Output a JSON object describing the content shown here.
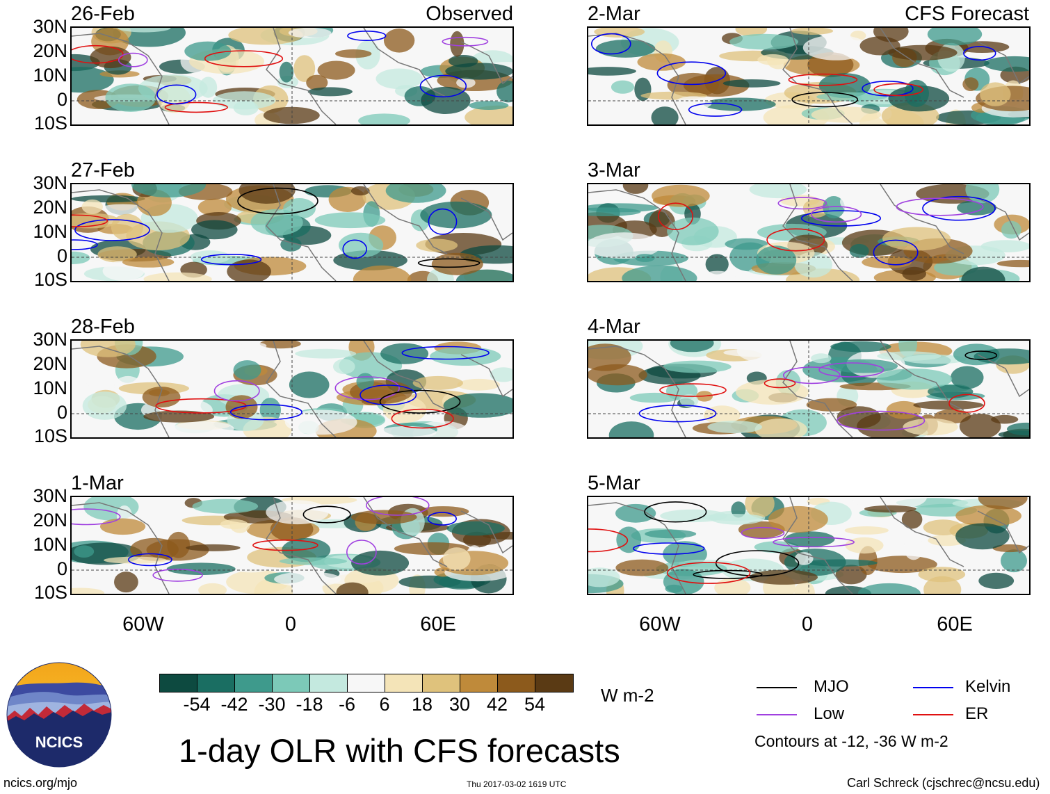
{
  "header": {
    "left_title": "Observed",
    "right_title": "CFS Forecast"
  },
  "panels_left": [
    {
      "date": "26-Feb"
    },
    {
      "date": "27-Feb"
    },
    {
      "date": "28-Feb"
    },
    {
      "date": "1-Mar"
    }
  ],
  "panels_right": [
    {
      "date": "2-Mar"
    },
    {
      "date": "3-Mar"
    },
    {
      "date": "4-Mar"
    },
    {
      "date": "5-Mar"
    }
  ],
  "axes": {
    "lat_labels": [
      "30N",
      "20N",
      "10N",
      "0",
      "10S"
    ],
    "lon_labels": [
      "60W",
      "0",
      "60E"
    ]
  },
  "colorbar": {
    "colors": [
      "#0d4a40",
      "#1a6e62",
      "#3e9a8c",
      "#7cc9b8",
      "#c4e9df",
      "#f7f7f7",
      "#f4e4b8",
      "#dfc27c",
      "#bf8a3a",
      "#8c5a1c",
      "#5a3a14"
    ],
    "tick_labels": [
      "-54",
      "-42",
      "-30",
      "-18",
      "-6",
      "6",
      "18",
      "30",
      "42",
      "54"
    ],
    "units": "W m-2"
  },
  "title": "1-day OLR with CFS forecasts",
  "legend": {
    "items": [
      {
        "label": "MJO",
        "color": "#000000"
      },
      {
        "label": "Kelvin",
        "color": "#0000ee"
      },
      {
        "label": "Low",
        "color": "#a040e0"
      },
      {
        "label": "ER",
        "color": "#e01010"
      }
    ],
    "contours_note": "Contours at -12, -36 W m-2"
  },
  "logo": {
    "text": "NCICS"
  },
  "footer": {
    "left": "ncics.org/mjo",
    "center": "Thu 2017-03-02 1619 UTC",
    "right": "Carl Schreck (cjschrec@ncsu.edu)"
  }
}
